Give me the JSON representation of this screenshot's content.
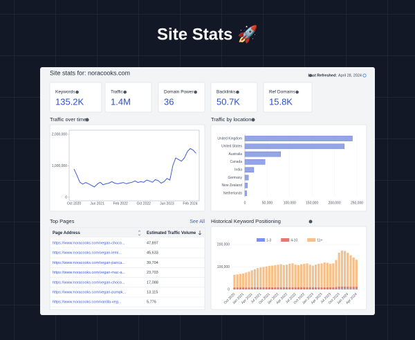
{
  "title": "Site Stats 🚀",
  "panel": {
    "heading": "Site stats for: noracooks.com",
    "refreshed_label": "Last Refreshed:",
    "refreshed_date": "April 28, 2024"
  },
  "metrics": [
    {
      "label": "Keywords",
      "value": "135.2K"
    },
    {
      "label": "Traffic",
      "value": "1.4M"
    },
    {
      "label": "Domain Power",
      "value": "36"
    },
    {
      "label": "Backlinks",
      "value": "50.7K"
    },
    {
      "label": "Ref Domains",
      "value": "15.8K"
    }
  ],
  "chart_data": [
    {
      "type": "line",
      "title": "Traffic over time",
      "color": "#3b5bdb",
      "categories": [
        "Oct 2020",
        null,
        null,
        null,
        null,
        null,
        null,
        null,
        "Jun 2021",
        null,
        null,
        null,
        null,
        null,
        null,
        null,
        "Feb 2022",
        null,
        null,
        null,
        null,
        null,
        null,
        null,
        "Oct 2022",
        null,
        null,
        null,
        null,
        null,
        null,
        null,
        "Jun 2023",
        null,
        null,
        null,
        null,
        null,
        null,
        null,
        "Feb 2024",
        null,
        null
      ],
      "values": [
        900000,
        700000,
        480000,
        420000,
        470000,
        430000,
        380000,
        330000,
        420000,
        480000,
        400000,
        430000,
        450000,
        500000,
        450000,
        430000,
        450000,
        470000,
        430000,
        460000,
        480000,
        520000,
        470000,
        500000,
        480000,
        550000,
        520000,
        480000,
        560000,
        530000,
        450000,
        500000,
        600000,
        550000,
        1000000,
        1250000,
        1200000,
        1150000,
        1250000,
        1450000,
        1550000,
        1500000,
        1400000
      ],
      "ylim": [
        0,
        2000000
      ],
      "yticks": [
        0,
        {
          "value": 1000000,
          "label": "1,000,000"
        },
        {
          "value": 2000000,
          "label": "2,000,000"
        }
      ]
    },
    {
      "type": "hbar",
      "title": "Traffic by location",
      "color": "#93a5e6",
      "categories": [
        "United Kingdom",
        "United States",
        "Australia",
        "Canada",
        "India",
        "Germany",
        "New Zealand",
        "Netherlands"
      ],
      "values": [
        240000,
        222000,
        80000,
        45000,
        20000,
        8000,
        6000,
        4000
      ],
      "xlim": [
        0,
        250000
      ],
      "xticks": [
        0,
        {
          "value": 50000,
          "label": "50,000"
        },
        {
          "value": 100000,
          "label": "100,000"
        },
        {
          "value": 150000,
          "label": "150,000"
        },
        {
          "value": 200000,
          "label": "200,000"
        },
        {
          "value": 250000,
          "label": "250,000"
        }
      ]
    },
    {
      "type": "stacked_bar",
      "title": "Historical Keyword Positioning",
      "categories": [
        "Oct 2020",
        null,
        null,
        "Jan 2021",
        null,
        null,
        "Apr 2021",
        null,
        null,
        "Jul 2021",
        null,
        null,
        "Oct 2021",
        null,
        null,
        "Jan 2022",
        null,
        null,
        "Apr 2022",
        null,
        null,
        "Jul 2022",
        null,
        null,
        "Oct 2022",
        null,
        null,
        "Jan 2023",
        null,
        null,
        "Apr 2023",
        null,
        null,
        "Jul 2023",
        null,
        null,
        "Oct 2023",
        null,
        null,
        "Jan 2024",
        null,
        null,
        "Apr 2024"
      ],
      "series": [
        {
          "name": "1-3",
          "color": "#7a93e6",
          "values": [
            3000,
            3000,
            3000,
            3000,
            3000,
            3000,
            3000,
            3000,
            3000,
            3000,
            3000,
            3000,
            3000,
            3000,
            3000,
            3000,
            3000,
            3000,
            3000,
            3000,
            3000,
            3000,
            3000,
            3000,
            3000,
            3000,
            3000,
            3000,
            3000,
            3000,
            3000,
            3000,
            3000,
            3000,
            3000,
            3000,
            4000,
            4000,
            4000,
            4000,
            4000,
            4000,
            4000
          ]
        },
        {
          "name": "4-10",
          "color": "#e07a6e",
          "values": [
            6000,
            6000,
            6000,
            6000,
            6000,
            6000,
            7000,
            7000,
            7000,
            7000,
            7000,
            7000,
            7000,
            7000,
            7000,
            7000,
            7000,
            7000,
            7000,
            7000,
            7000,
            7000,
            7000,
            7000,
            7000,
            7000,
            7000,
            7000,
            7000,
            7000,
            7000,
            7000,
            7000,
            7000,
            7000,
            8000,
            9000,
            9000,
            9000,
            9000,
            8000,
            8000,
            8000
          ]
        },
        {
          "name": "11+",
          "color": "#f5c08a",
          "values": [
            56000,
            58000,
            60000,
            62000,
            66000,
            70000,
            75000,
            80000,
            85000,
            88000,
            90000,
            92000,
            95000,
            96000,
            98000,
            100000,
            102000,
            98000,
            100000,
            104000,
            106000,
            100000,
            98000,
            102000,
            104000,
            106000,
            100000,
            96000,
            100000,
            104000,
            106000,
            110000,
            108000,
            104000,
            106000,
            120000,
            150000,
            160000,
            158000,
            150000,
            140000,
            130000,
            120000
          ]
        }
      ],
      "ylim": [
        0,
        200000
      ],
      "yticks": [
        0,
        {
          "value": 100000,
          "label": "100,000"
        },
        {
          "value": 200000,
          "label": "200,000"
        }
      ]
    }
  ],
  "top_pages": {
    "title": "Top Pages",
    "link": "See All",
    "columns": [
      "Page Address",
      "Estimated Traffic Volume"
    ],
    "rows": [
      [
        "https://www.noracooks.com/vegan-choco...",
        "47,897"
      ],
      [
        "https://www.noracooks.com/vegan-lemi...",
        "45,633"
      ],
      [
        "https://www.noracooks.com/vegan-panca...",
        "39,704"
      ],
      [
        "https://www.noracooks.com/vegan-mac-a...",
        "23,703"
      ],
      [
        "https://www.noracooks.com/vegan-choco...",
        "17,088"
      ],
      [
        "https://www.noracooks.com/vegan-pumpk...",
        "13,115"
      ],
      [
        "https://www.noracooks.com/vanilla-veg...",
        "5,776"
      ]
    ]
  }
}
